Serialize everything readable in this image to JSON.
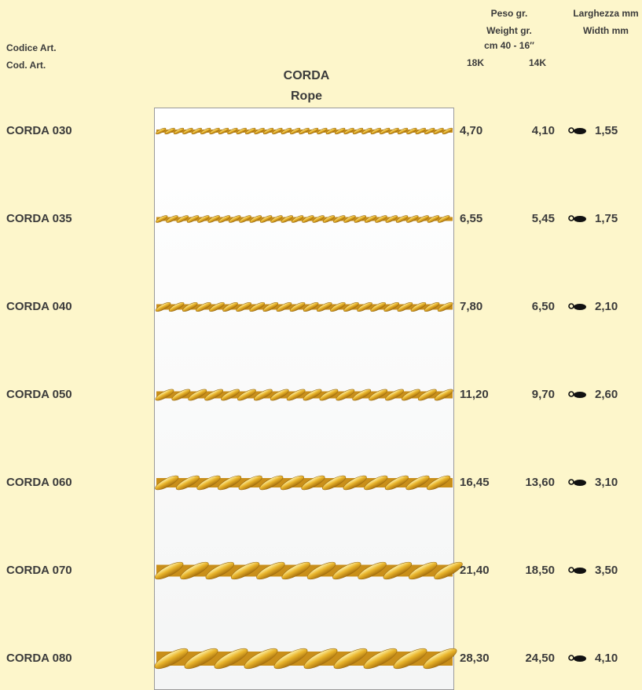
{
  "header": {
    "code_it": "Codice Art.",
    "code_en": "Cod. Art.",
    "product_it": "CORDA",
    "product_en": "Rope",
    "weight_it": "Peso gr.",
    "weight_en": "Weight gr.",
    "length": "cm 40 - 16″",
    "gold_18k": "18K",
    "gold_14k": "14K",
    "width_it": "Larghezza mm",
    "width_en": "Width mm"
  },
  "rows": [
    {
      "code": "CORDA 030",
      "weight_18k": "4,70",
      "weight_14k": "4,10",
      "width": "1,55"
    },
    {
      "code": "CORDA 035",
      "weight_18k": "6,55",
      "weight_14k": "5,45",
      "width": "1,75"
    },
    {
      "code": "CORDA 040",
      "weight_18k": "7,80",
      "weight_14k": "6,50",
      "width": "2,10"
    },
    {
      "code": "CORDA 050",
      "weight_18k": "11,20",
      "weight_14k": "9,70",
      "width": "2,60"
    },
    {
      "code": "CORDA 060",
      "weight_18k": "16,45",
      "weight_14k": "13,60",
      "width": "3,10"
    },
    {
      "code": "CORDA 070",
      "weight_18k": "21,40",
      "weight_14k": "18,50",
      "width": "3,50"
    },
    {
      "code": "CORDA 080",
      "weight_18k": "28,30",
      "weight_14k": "24,50",
      "width": "4,10"
    }
  ]
}
